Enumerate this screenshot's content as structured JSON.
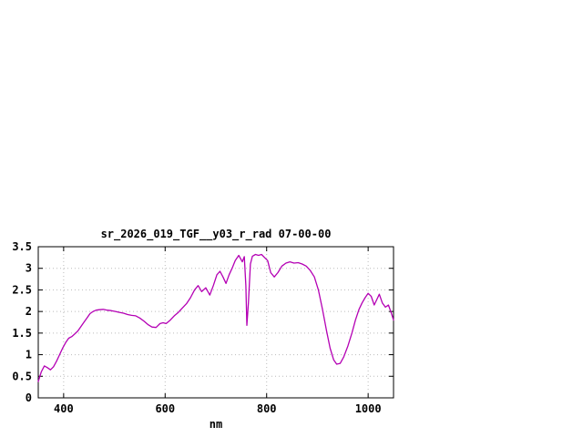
{
  "page": {
    "background": "#ffffff"
  },
  "chart": {
    "title": "sr_2026_019_TGF__y03_r_rad 07-00-00",
    "xlabel": "nm",
    "line_color": "#B400B4",
    "axis_color": "#000000",
    "grid_color": "#bbbbbb",
    "text_color": "#000000"
  },
  "chart_data": {
    "type": "line",
    "title": "sr_2026_019_TGF__y03_r_rad 07-00-00",
    "xlabel": "nm",
    "ylabel": "",
    "xlim": [
      350,
      1050
    ],
    "ylim": [
      0,
      3.5
    ],
    "x_ticks": [
      400,
      600,
      800,
      1000
    ],
    "y_ticks": [
      0,
      0.5,
      1,
      1.5,
      2,
      2.5,
      3,
      3.5
    ],
    "grid": true,
    "legend_position": "none",
    "series": [
      {
        "name": "sr_2026_019_TGF__y03_r_rad",
        "x": [
          350,
          356,
          362,
          368,
          374,
          380,
          386,
          392,
          398,
          404,
          410,
          416,
          422,
          428,
          434,
          440,
          446,
          452,
          458,
          464,
          470,
          478,
          486,
          494,
          502,
          510,
          518,
          526,
          534,
          542,
          550,
          558,
          566,
          574,
          582,
          590,
          596,
          602,
          610,
          618,
          626,
          634,
          642,
          650,
          658,
          665,
          672,
          680,
          688,
          695,
          702,
          708,
          714,
          720,
          726,
          732,
          738,
          745,
          752,
          756,
          759,
          761,
          764,
          768,
          772,
          778,
          784,
          790,
          796,
          802,
          808,
          815,
          822,
          830,
          838,
          846,
          854,
          862,
          870,
          878,
          886,
          894,
          902,
          910,
          918,
          925,
          932,
          938,
          945,
          952,
          960,
          968,
          975,
          982,
          988,
          994,
          1000,
          1006,
          1012,
          1018,
          1022,
          1028,
          1034,
          1040,
          1046,
          1050
        ],
        "y": [
          0.38,
          0.6,
          0.74,
          0.7,
          0.65,
          0.72,
          0.85,
          1.0,
          1.15,
          1.28,
          1.38,
          1.42,
          1.48,
          1.55,
          1.65,
          1.75,
          1.85,
          1.95,
          2.0,
          2.03,
          2.04,
          2.05,
          2.03,
          2.02,
          2.0,
          1.98,
          1.96,
          1.93,
          1.91,
          1.9,
          1.85,
          1.78,
          1.7,
          1.64,
          1.63,
          1.72,
          1.74,
          1.72,
          1.8,
          1.9,
          1.98,
          2.08,
          2.18,
          2.32,
          2.5,
          2.6,
          2.46,
          2.55,
          2.38,
          2.6,
          2.85,
          2.93,
          2.8,
          2.65,
          2.85,
          3.0,
          3.18,
          3.3,
          3.15,
          3.27,
          2.6,
          1.68,
          2.2,
          3.1,
          3.28,
          3.32,
          3.3,
          3.32,
          3.25,
          3.18,
          2.9,
          2.8,
          2.9,
          3.05,
          3.12,
          3.15,
          3.12,
          3.13,
          3.1,
          3.05,
          2.95,
          2.8,
          2.5,
          2.05,
          1.55,
          1.15,
          0.88,
          0.78,
          0.8,
          0.95,
          1.2,
          1.5,
          1.8,
          2.05,
          2.2,
          2.32,
          2.42,
          2.35,
          2.15,
          2.3,
          2.4,
          2.2,
          2.1,
          2.15,
          1.95,
          1.8
        ]
      }
    ]
  }
}
